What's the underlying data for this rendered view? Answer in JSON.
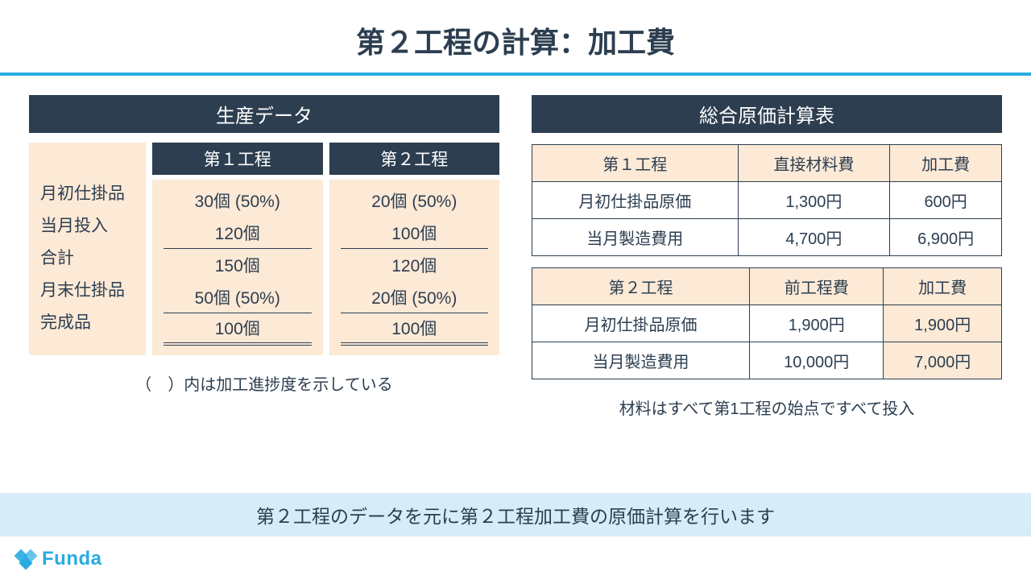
{
  "title": "第２工程の計算：加工費",
  "production": {
    "header": "生産データ",
    "row_labels": [
      "月初仕掛品",
      "当月投入",
      "合計",
      "月末仕掛品",
      "完成品"
    ],
    "col1": {
      "header": "第１工程",
      "values": [
        "30個 (50%)",
        "120個",
        "150個",
        "50個 (50%)",
        "100個"
      ]
    },
    "col2": {
      "header": "第２工程",
      "values": [
        "20個 (50%)",
        "100個",
        "120個",
        "20個 (50%)",
        "100個"
      ]
    },
    "note": "（　）内は加工進捗度を示している"
  },
  "cost": {
    "header": "総合原価計算表",
    "t1": {
      "h": [
        "第１工程",
        "直接材料費",
        "加工費"
      ],
      "r1": [
        "月初仕掛品原価",
        "1,300円",
        "600円"
      ],
      "r2": [
        "当月製造費用",
        "4,700円",
        "6,900円"
      ]
    },
    "t2": {
      "h": [
        "第２工程",
        "前工程費",
        "加工費"
      ],
      "r1": [
        "月初仕掛品原価",
        "1,900円",
        "1,900円"
      ],
      "r2": [
        "当月製造費用",
        "10,000円",
        "7,000円"
      ]
    },
    "note": "材料はすべて第1工程の始点ですべて投入"
  },
  "bottom": "第２工程のデータを元に第２工程加工費の原価計算を行います",
  "logo": "Funda",
  "colors": {
    "accent": "#29abe2",
    "dark": "#2c3e50",
    "peach": "#fce9d6",
    "lightblue": "#d6edf8"
  }
}
